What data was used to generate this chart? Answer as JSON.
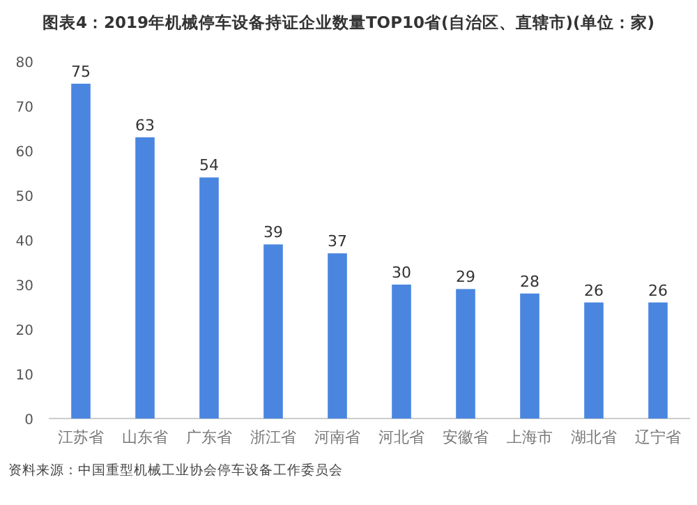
{
  "chart_data": {
    "type": "bar",
    "title": "图表4：2019年机械停车设备持证企业数量TOP10省(自治区、直辖市)(单位：家)",
    "categories": [
      "江苏省",
      "山东省",
      "广东省",
      "浙江省",
      "河南省",
      "河北省",
      "安徽省",
      "上海市",
      "湖北省",
      "辽宁省"
    ],
    "values": [
      75,
      63,
      54,
      39,
      37,
      30,
      29,
      28,
      26,
      26
    ],
    "color": "#4a86e0",
    "ylim": [
      0,
      80
    ],
    "yticks": [
      0,
      10,
      20,
      30,
      40,
      50,
      60,
      70,
      80
    ],
    "data_labels": true,
    "annotations": [
      "资料来源：中国重型机械工业协会停车设备工作委员会"
    ]
  }
}
